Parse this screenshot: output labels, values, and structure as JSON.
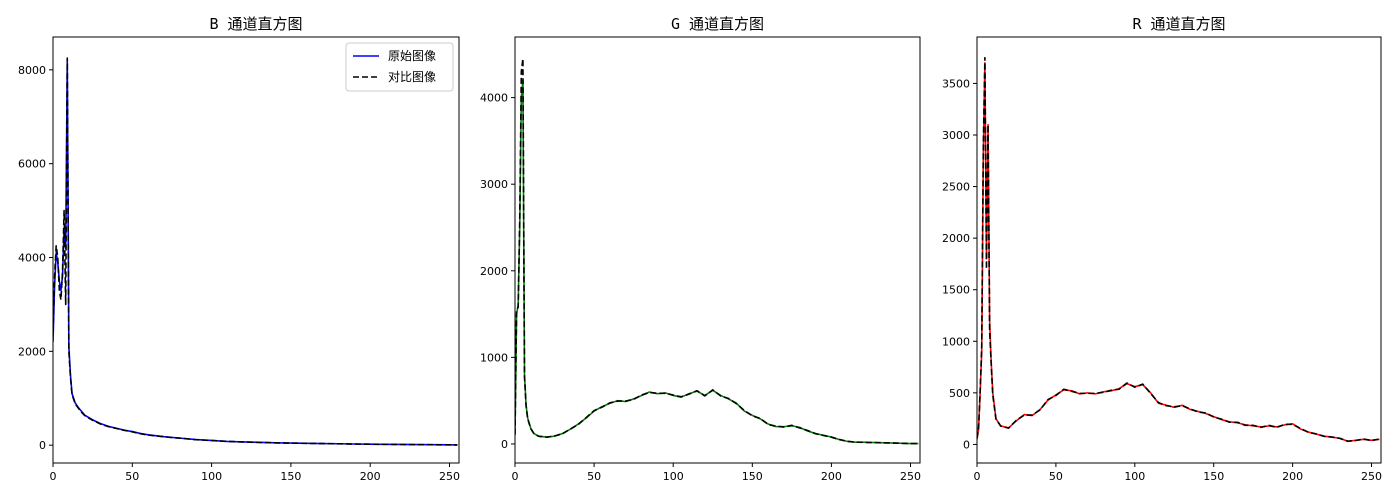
{
  "chart_data": [
    {
      "type": "line",
      "title": "B 通道直方图",
      "color": "#0000ff",
      "xlim": [
        0,
        256
      ],
      "ylim": [
        -380,
        8700
      ],
      "xticks": [
        0,
        50,
        100,
        150,
        200,
        250
      ],
      "yticks": [
        0,
        2000,
        4000,
        6000,
        8000
      ],
      "legend": {
        "placement": "top-right",
        "entries": [
          "原始图像",
          "对比图像"
        ]
      },
      "series": [
        {
          "name": "原始图像",
          "style": "solid",
          "x": [
            0,
            1,
            2,
            3,
            4,
            5,
            6,
            7,
            8,
            9,
            10,
            11,
            12,
            14,
            16,
            18,
            20,
            25,
            30,
            35,
            40,
            45,
            50,
            55,
            60,
            70,
            80,
            90,
            100,
            110,
            120,
            130,
            140,
            150,
            160,
            170,
            180,
            190,
            200,
            210,
            220,
            230,
            240,
            250,
            255
          ],
          "y": [
            2200,
            3400,
            4100,
            3900,
            3500,
            3300,
            3600,
            4600,
            4200,
            8200,
            2100,
            1500,
            1100,
            900,
            800,
            720,
            640,
            540,
            460,
            400,
            360,
            320,
            290,
            250,
            220,
            180,
            150,
            120,
            100,
            80,
            70,
            60,
            50,
            45,
            40,
            35,
            30,
            25,
            20,
            18,
            15,
            12,
            10,
            8,
            5
          ]
        },
        {
          "name": "对比图像",
          "style": "dashed",
          "x": [
            0,
            1,
            2,
            3,
            4,
            5,
            6,
            7,
            8,
            9,
            10,
            11,
            12,
            14,
            16,
            18,
            20,
            25,
            30,
            35,
            40,
            45,
            50,
            55,
            60,
            70,
            80,
            90,
            100,
            110,
            120,
            130,
            140,
            150,
            160,
            170,
            180,
            190,
            200,
            210,
            220,
            230,
            240,
            250,
            255
          ],
          "y": [
            2400,
            3600,
            4250,
            4000,
            3300,
            3100,
            3700,
            5000,
            3000,
            8250,
            2000,
            1450,
            1080,
            880,
            790,
            700,
            630,
            530,
            450,
            395,
            355,
            315,
            285,
            245,
            215,
            178,
            148,
            118,
            98,
            80,
            68,
            58,
            50,
            44,
            39,
            34,
            29,
            24,
            20,
            17,
            14,
            11,
            9,
            7,
            5
          ]
        }
      ]
    },
    {
      "type": "line",
      "title": "G 通道直方图",
      "color": "#008000",
      "xlim": [
        0,
        256
      ],
      "ylim": [
        -220,
        4700
      ],
      "xticks": [
        0,
        50,
        100,
        150,
        200,
        250
      ],
      "yticks": [
        0,
        1000,
        2000,
        3000,
        4000
      ],
      "series": [
        {
          "name": "原始图像",
          "style": "solid",
          "x": [
            0,
            1,
            2,
            3,
            4,
            5,
            6,
            7,
            8,
            10,
            12,
            15,
            20,
            25,
            30,
            35,
            40,
            45,
            50,
            55,
            60,
            65,
            70,
            75,
            80,
            85,
            90,
            95,
            100,
            105,
            110,
            115,
            120,
            125,
            130,
            135,
            140,
            145,
            150,
            155,
            160,
            165,
            170,
            175,
            180,
            185,
            190,
            195,
            200,
            205,
            210,
            215,
            220,
            230,
            240,
            250,
            255
          ],
          "y": [
            100,
            1500,
            1600,
            2500,
            4000,
            4200,
            800,
            450,
            300,
            180,
            120,
            90,
            80,
            90,
            120,
            170,
            230,
            300,
            380,
            430,
            470,
            500,
            490,
            520,
            560,
            600,
            580,
            590,
            560,
            540,
            580,
            610,
            560,
            620,
            560,
            520,
            470,
            380,
            330,
            290,
            230,
            200,
            200,
            210,
            190,
            150,
            120,
            100,
            80,
            50,
            30,
            20,
            20,
            15,
            10,
            5,
            5
          ]
        },
        {
          "name": "对比图像",
          "style": "dashed",
          "x": [
            0,
            1,
            2,
            3,
            4,
            5,
            6,
            7,
            8,
            10,
            12,
            15,
            20,
            25,
            30,
            35,
            40,
            45,
            50,
            55,
            60,
            65,
            70,
            75,
            80,
            85,
            90,
            95,
            100,
            105,
            110,
            115,
            120,
            125,
            130,
            135,
            140,
            145,
            150,
            155,
            160,
            165,
            170,
            175,
            180,
            185,
            190,
            195,
            200,
            205,
            210,
            215,
            220,
            230,
            240,
            250,
            255
          ],
          "y": [
            110,
            1550,
            1580,
            2600,
            4300,
            4450,
            780,
            440,
            290,
            175,
            118,
            88,
            78,
            92,
            118,
            172,
            225,
            305,
            385,
            425,
            475,
            495,
            495,
            515,
            565,
            595,
            585,
            585,
            565,
            545,
            575,
            615,
            555,
            625,
            555,
            525,
            465,
            385,
            325,
            295,
            225,
            205,
            195,
            215,
            185,
            155,
            118,
            98,
            78,
            52,
            30,
            22,
            18,
            15,
            10,
            5,
            5
          ]
        }
      ]
    },
    {
      "type": "line",
      "title": "R 通道直方图",
      "color": "#ff0000",
      "xlim": [
        0,
        256
      ],
      "ylim": [
        -180,
        3950
      ],
      "xticks": [
        0,
        50,
        100,
        150,
        200,
        250
      ],
      "yticks": [
        0,
        500,
        1000,
        1500,
        2000,
        2500,
        3000,
        3500
      ],
      "series": [
        {
          "name": "原始图像",
          "style": "solid",
          "x": [
            0,
            1,
            2,
            3,
            4,
            5,
            6,
            7,
            8,
            9,
            10,
            12,
            15,
            20,
            25,
            30,
            35,
            40,
            45,
            50,
            55,
            60,
            65,
            70,
            75,
            80,
            85,
            90,
            95,
            100,
            105,
            110,
            115,
            120,
            125,
            130,
            135,
            140,
            145,
            150,
            155,
            160,
            165,
            170,
            175,
            180,
            185,
            190,
            195,
            200,
            205,
            210,
            215,
            220,
            225,
            230,
            235,
            240,
            245,
            250,
            255
          ],
          "y": [
            50,
            150,
            500,
            900,
            2800,
            3700,
            1800,
            3100,
            1200,
            800,
            500,
            250,
            180,
            160,
            230,
            290,
            280,
            340,
            430,
            480,
            530,
            520,
            490,
            500,
            490,
            510,
            520,
            540,
            590,
            560,
            580,
            500,
            400,
            380,
            360,
            380,
            340,
            320,
            300,
            270,
            240,
            220,
            210,
            190,
            180,
            170,
            180,
            170,
            190,
            200,
            150,
            120,
            100,
            80,
            70,
            60,
            30,
            40,
            50,
            40,
            50
          ]
        },
        {
          "name": "对比图像",
          "style": "dashed",
          "x": [
            0,
            1,
            2,
            3,
            4,
            5,
            6,
            7,
            8,
            9,
            10,
            12,
            15,
            20,
            25,
            30,
            35,
            40,
            45,
            50,
            55,
            60,
            65,
            70,
            75,
            80,
            85,
            90,
            95,
            100,
            105,
            110,
            115,
            120,
            125,
            130,
            135,
            140,
            145,
            150,
            155,
            160,
            165,
            170,
            175,
            180,
            185,
            190,
            195,
            200,
            205,
            210,
            215,
            220,
            225,
            230,
            235,
            240,
            245,
            250,
            255
          ],
          "y": [
            60,
            160,
            520,
            950,
            2900,
            3750,
            1700,
            3100,
            1100,
            780,
            480,
            245,
            178,
            158,
            235,
            285,
            285,
            335,
            435,
            475,
            535,
            515,
            495,
            495,
            495,
            505,
            525,
            535,
            595,
            555,
            585,
            495,
            405,
            375,
            365,
            375,
            345,
            315,
            305,
            265,
            245,
            215,
            215,
            185,
            185,
            165,
            185,
            165,
            195,
            195,
            155,
            118,
            102,
            78,
            72,
            58,
            32,
            38,
            52,
            38,
            52
          ]
        }
      ]
    }
  ]
}
